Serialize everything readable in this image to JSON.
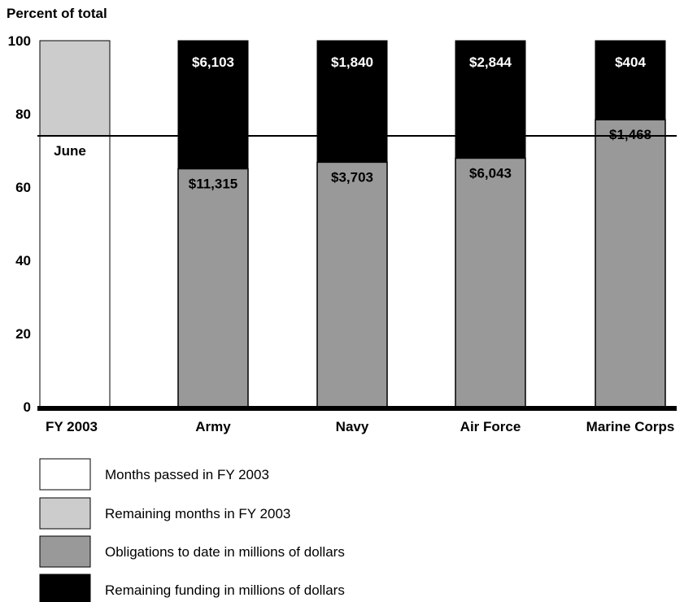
{
  "chart_data": {
    "type": "bar",
    "stacked": true,
    "ylabel": "Percent of total",
    "ylim": [
      0,
      100
    ],
    "yticks": [
      0,
      20,
      40,
      60,
      80,
      100
    ],
    "categories": [
      "FY 2003",
      "Army",
      "Navy",
      "Air Force",
      "Marine Corps"
    ],
    "reference_line": {
      "value": 74,
      "label": "June"
    },
    "fy_bar": {
      "category": "FY 2003",
      "months_passed_pct": 74,
      "remaining_months_pct": 26
    },
    "series": [
      {
        "name": "Obligations to date in millions of dollars",
        "categories": [
          "Army",
          "Navy",
          "Air Force",
          "Marine Corps"
        ],
        "percent": [
          65,
          66.8,
          67.9,
          78.4
        ],
        "labels": [
          "$11,315",
          "$3,703",
          "$6,043",
          "$1,468"
        ]
      },
      {
        "name": "Remaining funding in millions of dollars",
        "categories": [
          "Army",
          "Navy",
          "Air Force",
          "Marine Corps"
        ],
        "percent": [
          35,
          33.2,
          32.1,
          21.6
        ],
        "labels": [
          "$6,103",
          "$1,840",
          "$2,844",
          "$404"
        ]
      }
    ],
    "legend": [
      {
        "label": "Months passed in FY 2003",
        "color": "#ffffff"
      },
      {
        "label": "Remaining months in FY 2003",
        "color": "#cccccc"
      },
      {
        "label": "Obligations to date in millions of dollars",
        "color": "#999999"
      },
      {
        "label": "Remaining funding in millions of dollars",
        "color": "#000000"
      }
    ],
    "colors": {
      "months_passed": "#ffffff",
      "remaining_months": "#cccccc",
      "obligations": "#999999",
      "remaining_funding": "#000000"
    },
    "grid": false,
    "legend_position": "bottom"
  }
}
